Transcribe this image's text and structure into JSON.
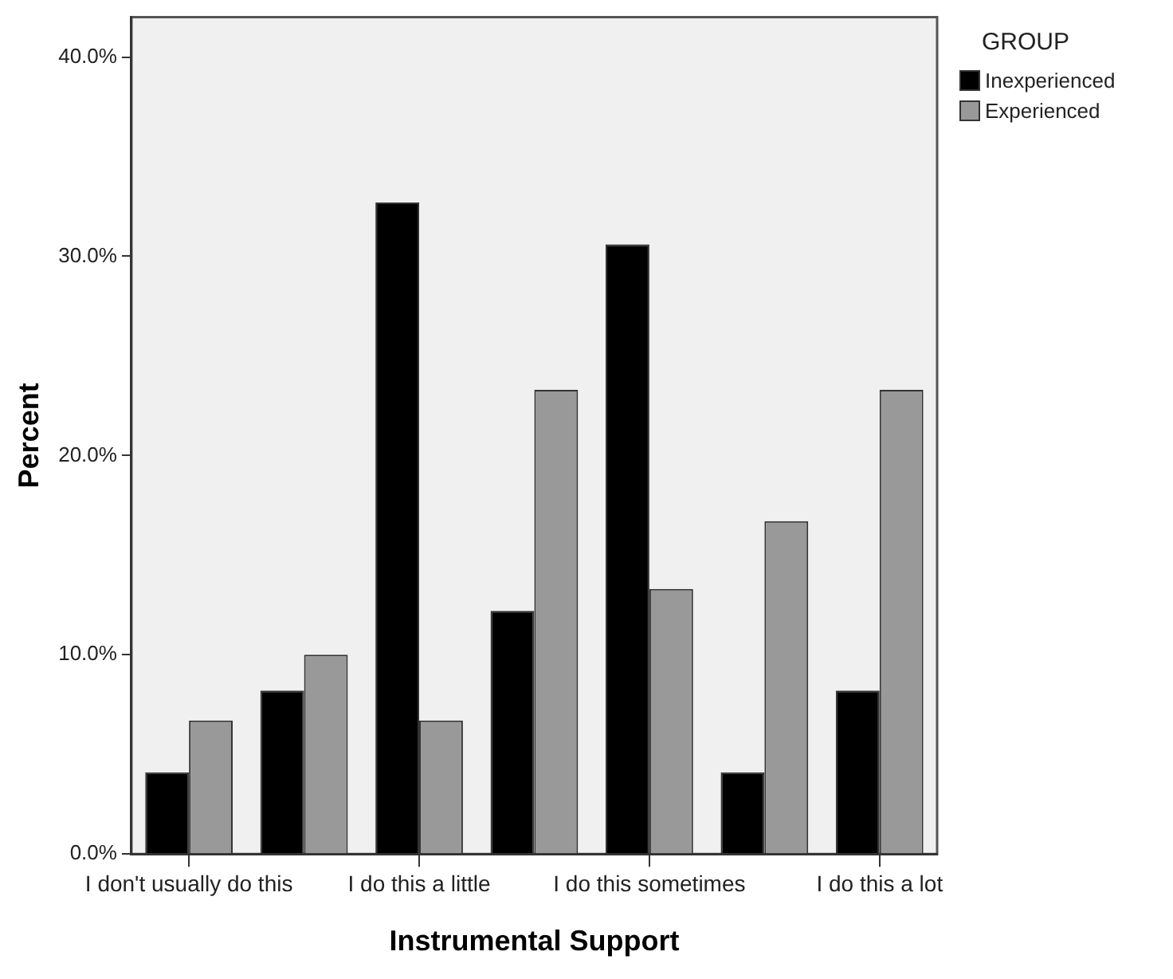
{
  "chart_data": {
    "type": "bar",
    "xlabel": "Instrumental Support",
    "ylabel": "Percent",
    "legend_title": "GROUP",
    "legend": "right",
    "categories": [
      "I don't usually do this",
      null,
      "I do this a little",
      null,
      "I do this sometimes",
      null,
      "I do this a lot"
    ],
    "series": [
      {
        "name": "Inexperienced",
        "color": "#000000",
        "values": [
          4.1,
          8.2,
          32.7,
          12.2,
          30.6,
          4.1,
          8.2
        ]
      },
      {
        "name": "Experienced",
        "color": "#999999",
        "values": [
          6.7,
          10.0,
          6.7,
          23.3,
          13.3,
          16.7,
          23.3
        ]
      }
    ],
    "ylim": [
      0,
      42
    ],
    "yticks": [
      {
        "value": 0,
        "label": "0.0%"
      },
      {
        "value": 10,
        "label": "10.0%"
      },
      {
        "value": 20,
        "label": "20.0%"
      },
      {
        "value": 30,
        "label": "30.0%"
      },
      {
        "value": 40,
        "label": "40.0%"
      }
    ],
    "grid": false
  }
}
